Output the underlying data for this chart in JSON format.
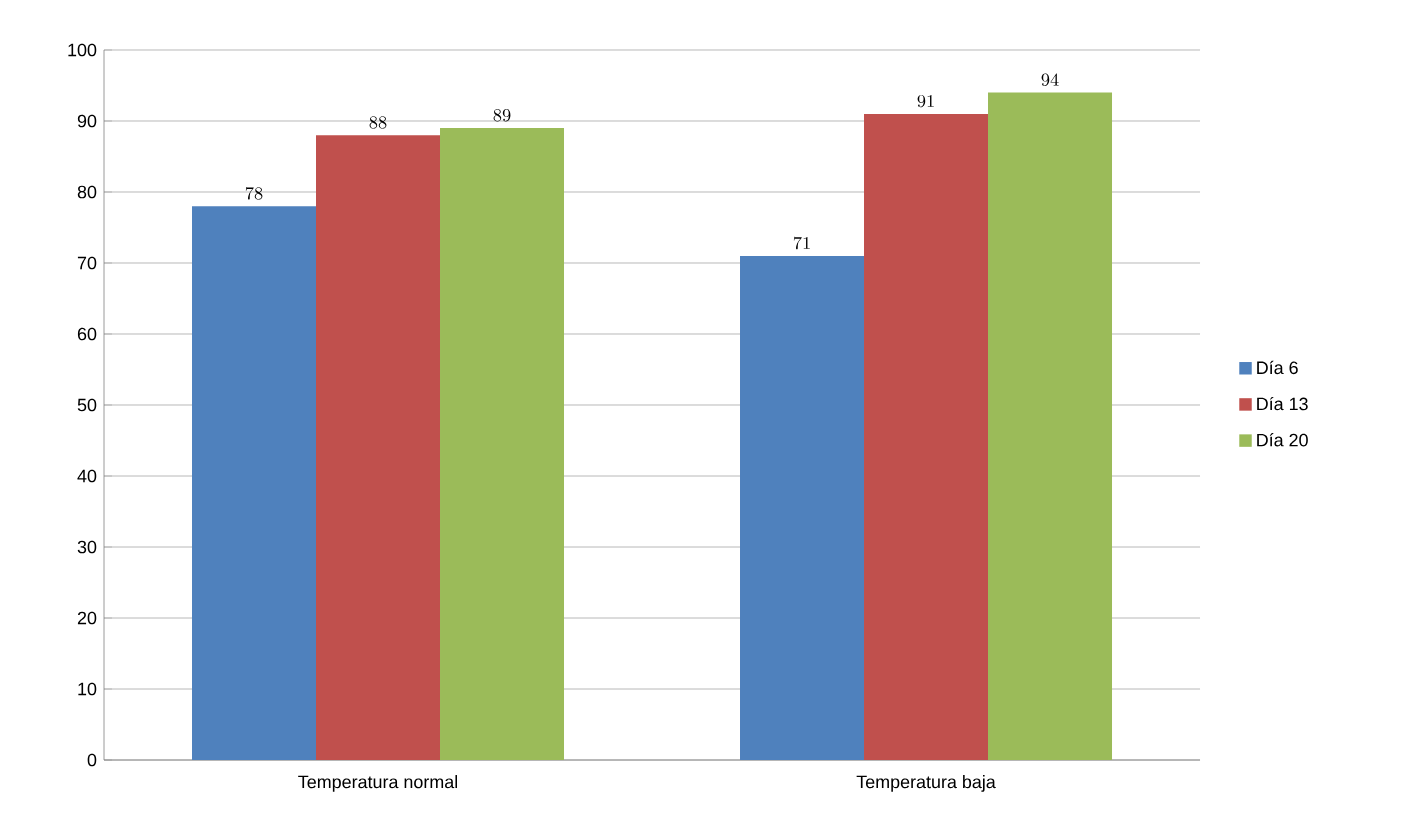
{
  "chart_data": {
    "type": "bar",
    "categories": [
      "Temperatura normal",
      "Temperatura baja"
    ],
    "series": [
      {
        "name": "Día 6",
        "color": "#4f81bd",
        "values": [
          78,
          71
        ]
      },
      {
        "name": "Día 13",
        "color": "#c0504d",
        "values": [
          88,
          91
        ]
      },
      {
        "name": "Día 20",
        "color": "#9bbb59",
        "values": [
          89,
          94
        ]
      }
    ],
    "ylim": [
      0,
      100
    ],
    "yticks": [
      0,
      10,
      20,
      30,
      40,
      50,
      60,
      70,
      80,
      90,
      100
    ],
    "grid": "y",
    "legend": "right",
    "data_labels": true
  }
}
